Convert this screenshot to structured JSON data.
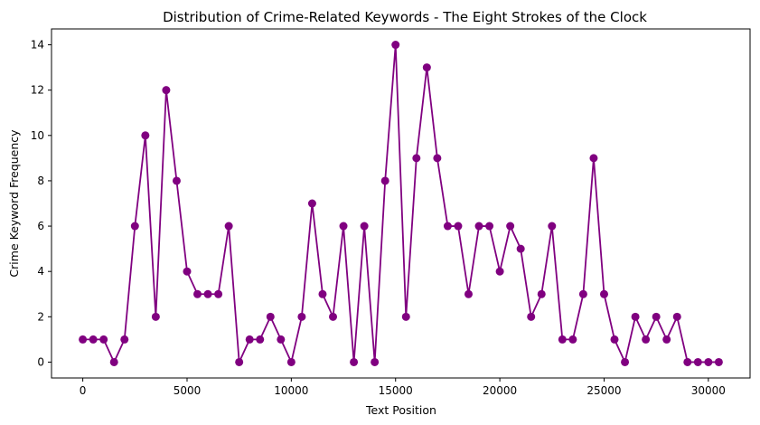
{
  "chart_data": {
    "type": "line",
    "title": "Distribution of Crime-Related Keywords - The Eight Strokes of the Clock",
    "xlabel": "Text Position",
    "ylabel": "Crime Keyword Frequency",
    "xlim": [
      -1500,
      32000
    ],
    "ylim": [
      -0.7,
      14.7
    ],
    "xticks": [
      0,
      5000,
      10000,
      15000,
      20000,
      25000,
      30000
    ],
    "yticks": [
      0,
      2,
      4,
      6,
      8,
      10,
      12,
      14
    ],
    "grid": false,
    "legend": "none",
    "color": "#800080",
    "marker": "circle",
    "series": [
      {
        "x": [
          0,
          500,
          1000,
          1500,
          2000,
          2500,
          3000,
          3500,
          4000,
          4500,
          5000,
          5500,
          6000,
          6500,
          7000,
          7500,
          8000,
          8500,
          9000,
          9500,
          10000,
          10500,
          11000,
          11500,
          12000,
          12500,
          13000,
          13500,
          14000,
          14500,
          15000,
          15500,
          16000,
          16500,
          17000,
          17500,
          18000,
          18500,
          19000,
          19500,
          20000,
          20500,
          21000,
          21500,
          22000,
          22500,
          23000,
          23500,
          24000,
          24500,
          25000,
          25500,
          26000,
          26500,
          27000,
          27500,
          28000,
          28500,
          29000,
          29500,
          30000,
          30500
        ],
        "values": [
          1,
          1,
          1,
          0,
          1,
          6,
          10,
          2,
          12,
          8,
          4,
          3,
          3,
          3,
          6,
          0,
          1,
          1,
          2,
          1,
          0,
          2,
          7,
          3,
          2,
          6,
          0,
          6,
          0,
          8,
          14,
          2,
          9,
          13,
          9,
          6,
          6,
          3,
          6,
          6,
          4,
          6,
          5,
          2,
          3,
          6,
          1,
          1,
          3,
          9,
          3,
          1,
          0,
          2,
          1,
          2,
          1,
          2,
          0,
          0,
          0,
          0
        ]
      }
    ]
  }
}
